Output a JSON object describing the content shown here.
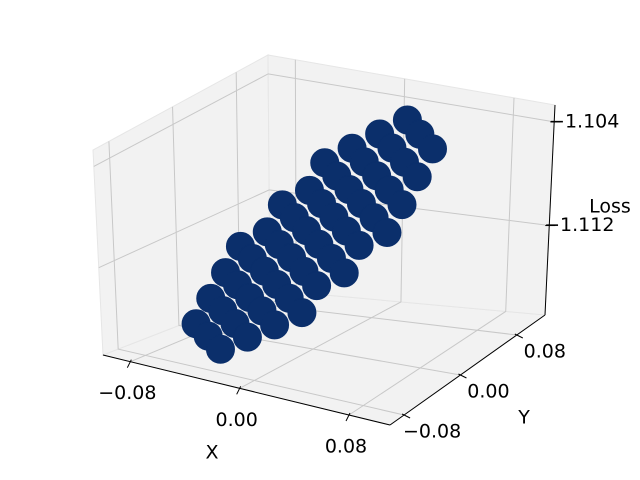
{
  "chart_data": {
    "type": "scatter3d",
    "xlabel": "X",
    "ylabel": "Y",
    "zlabel": "Loss",
    "xlim": [
      -0.1,
      0.11
    ],
    "ylim": [
      -0.1,
      0.12
    ],
    "zlim": [
      -1.1189,
      -1.1027
    ],
    "xticks": [
      {
        "value": -0.08,
        "label": "−0.08"
      },
      {
        "value": 0,
        "label": "0.00"
      },
      0.08
    ],
    "yticks": [
      {
        "value": -0.08,
        "label": "−0.08"
      },
      {
        "value": 0,
        "label": "0.00"
      },
      0.08
    ],
    "zticks": [
      {
        "value": -1.104,
        "label": "−1.104"
      },
      {
        "value": -1.112,
        "label": "−1.112"
      }
    ],
    "grid": true,
    "color": "#0b2f6b",
    "x": [
      -0.07,
      -0.07,
      -0.07,
      -0.07,
      -0.05,
      -0.05,
      -0.05,
      -0.05,
      -0.05,
      -0.05,
      -0.03,
      -0.03,
      -0.03,
      -0.03,
      -0.03,
      -0.03,
      -0.03,
      -0.03,
      -0.01,
      -0.01,
      -0.01,
      -0.01,
      -0.01,
      -0.01,
      -0.01,
      -0.01,
      0.01,
      0.01,
      0.01,
      0.01,
      0.01,
      0.01,
      0.01,
      0.01,
      0.03,
      0.03,
      0.03,
      0.03,
      0.03,
      0.03,
      0.03,
      0.03,
      0.05,
      0.05,
      0.05,
      0.05,
      0.05,
      0.05,
      0.07,
      0.07,
      0.07,
      0.07
    ],
    "y": [
      -0.03,
      -0.01,
      0.01,
      0.03,
      -0.05,
      -0.03,
      -0.01,
      0.01,
      0.03,
      0.05,
      -0.07,
      -0.05,
      -0.03,
      -0.01,
      0.01,
      0.03,
      0.05,
      0.07,
      -0.07,
      -0.05,
      -0.03,
      -0.01,
      0.01,
      0.03,
      0.05,
      0.07,
      -0.07,
      -0.05,
      -0.03,
      -0.01,
      0.01,
      0.03,
      0.05,
      0.07,
      -0.07,
      -0.05,
      -0.03,
      -0.01,
      0.01,
      0.03,
      0.05,
      0.07,
      -0.05,
      -0.03,
      -0.01,
      0.01,
      0.03,
      0.05,
      -0.03,
      -0.01,
      0.01,
      0.03
    ],
    "z": [
      -1.1175,
      -1.1161,
      -1.1147,
      -1.1133,
      -1.1175,
      -1.1161,
      -1.1147,
      -1.1133,
      -1.1119,
      -1.1105,
      -1.1175,
      -1.1161,
      -1.1147,
      -1.1133,
      -1.1119,
      -1.1105,
      -1.1091,
      -1.1077,
      -1.1161,
      -1.1147,
      -1.1133,
      -1.1119,
      -1.1105,
      -1.1091,
      -1.1077,
      -1.1063,
      -1.1147,
      -1.1133,
      -1.1119,
      -1.1105,
      -1.1091,
      -1.1077,
      -1.1063,
      -1.1049,
      -1.1133,
      -1.1119,
      -1.1105,
      -1.1091,
      -1.1077,
      -1.1063,
      -1.1049,
      -1.1035,
      -1.1105,
      -1.1091,
      -1.1077,
      -1.1063,
      -1.1049,
      -1.1035,
      -1.1077,
      -1.1063,
      -1.1049,
      -1.1035
    ]
  }
}
